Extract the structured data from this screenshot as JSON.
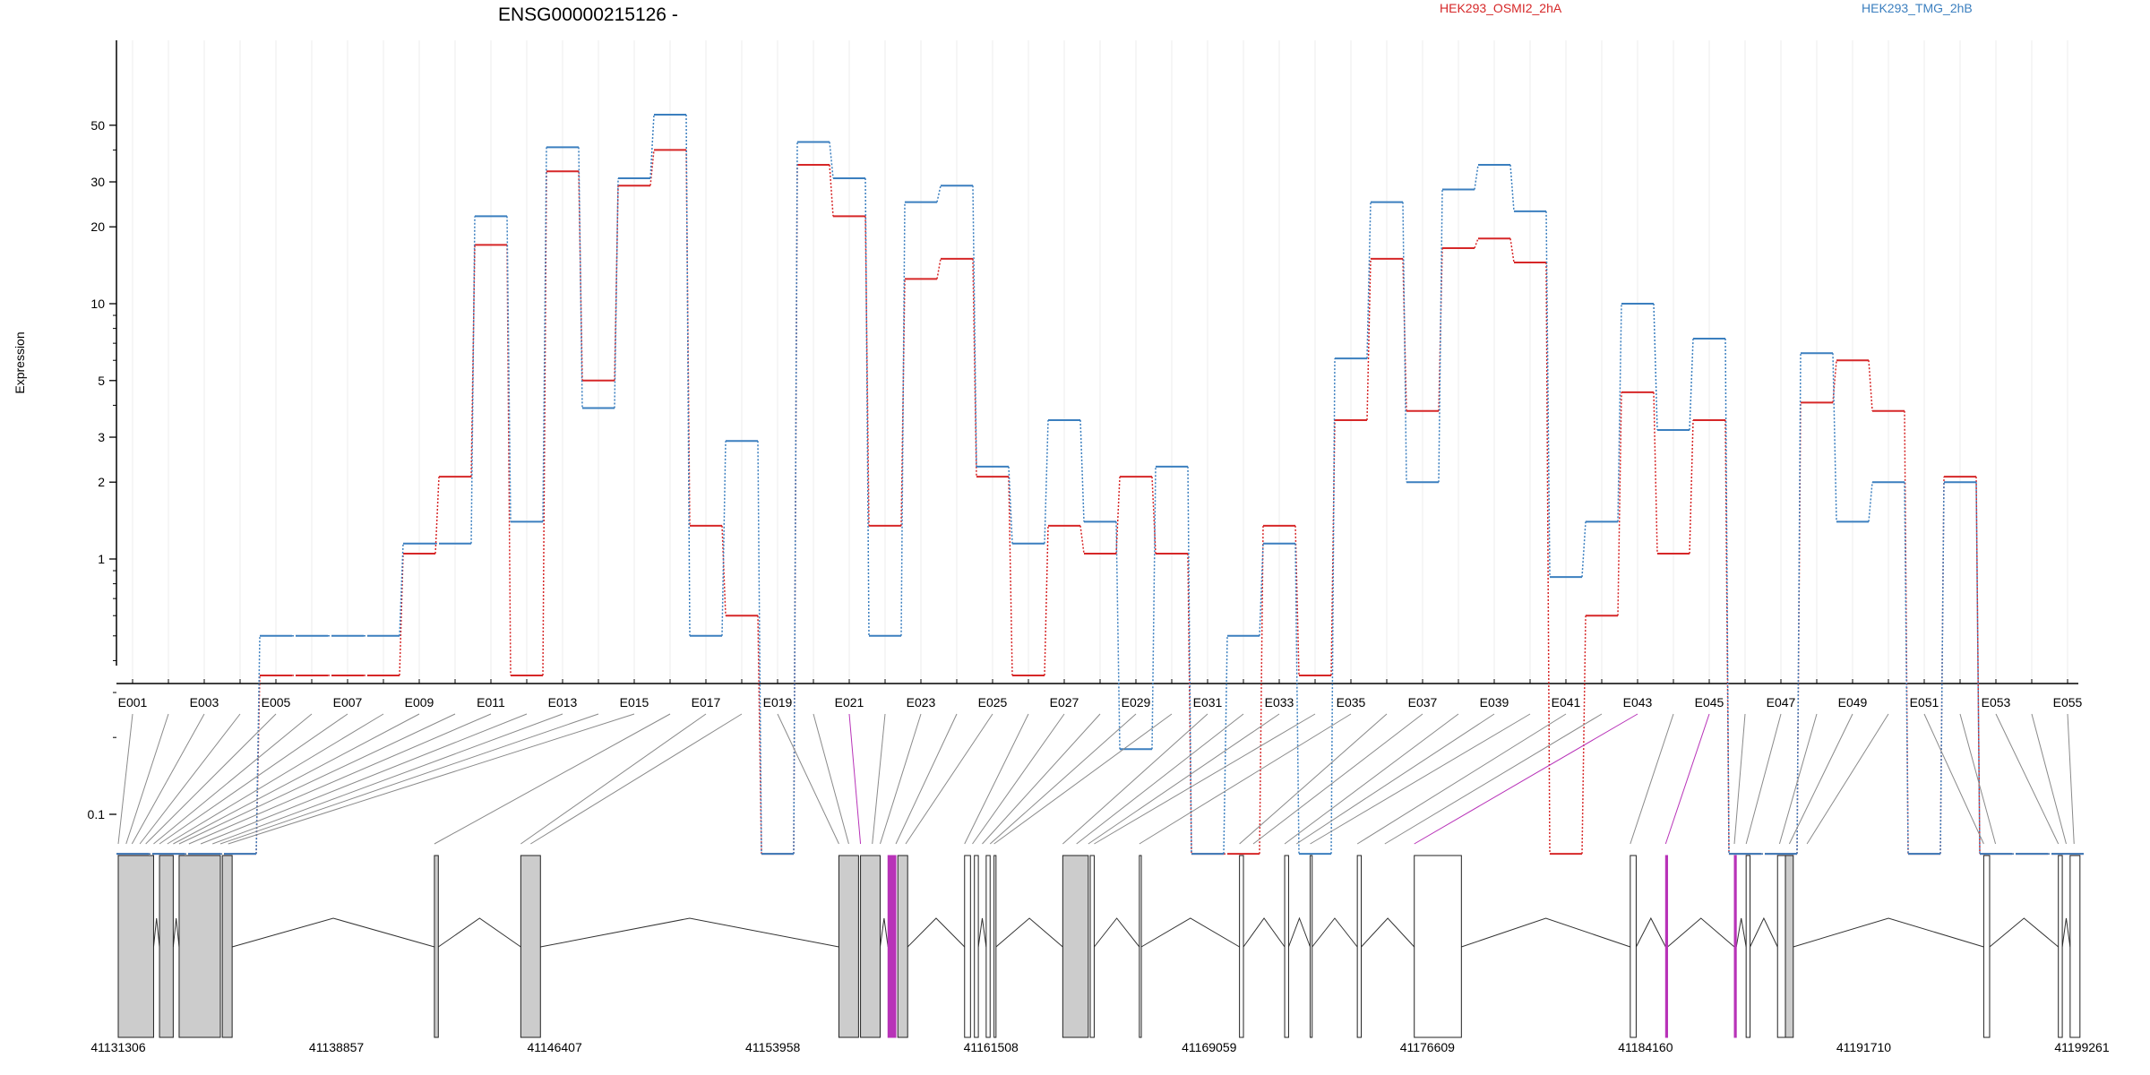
{
  "chart_data": {
    "type": "line",
    "title": "ENSG00000215126 -",
    "ylabel": "Expression",
    "yscale": "log (pseudo)",
    "yticks": [
      {
        "value": 0.1,
        "label": "0.1"
      },
      {
        "value": 1,
        "label": "1"
      },
      {
        "value": 2,
        "label": "2"
      },
      {
        "value": 3,
        "label": "3"
      },
      {
        "value": 5,
        "label": "5"
      },
      {
        "value": 10,
        "label": "10"
      },
      {
        "value": 20,
        "label": "20"
      },
      {
        "value": 30,
        "label": "30"
      },
      {
        "value": 50,
        "label": "50"
      }
    ],
    "grid": true,
    "legend": "top-right",
    "categories": [
      "E001",
      "E002",
      "E003",
      "E004",
      "E005",
      "E006",
      "E007",
      "E008",
      "E009",
      "E010",
      "E011",
      "E012",
      "E013",
      "E014",
      "E015",
      "E016",
      "E017",
      "E018",
      "E019",
      "E020",
      "E021",
      "E022",
      "E023",
      "E024",
      "E025",
      "E026",
      "E027",
      "E028",
      "E029",
      "E030",
      "E031",
      "E032",
      "E033",
      "E034",
      "E035",
      "E036",
      "E037",
      "E038",
      "E039",
      "E040",
      "E041",
      "E042",
      "E043",
      "E044",
      "E045",
      "E046",
      "E047",
      "E048",
      "E049",
      "E050",
      "E051",
      "E052",
      "E053",
      "E054",
      "E055"
    ],
    "xtick_labels": [
      "E001",
      "E003",
      "E005",
      "E007",
      "E009",
      "E011",
      "E013",
      "E015",
      "E017",
      "E019",
      "E021",
      "E023",
      "E025",
      "E027",
      "E029",
      "E031",
      "E033",
      "E035",
      "E037",
      "E039",
      "E041",
      "E043",
      "E045",
      "E047",
      "E049",
      "E051",
      "E053",
      "E055"
    ],
    "series": [
      {
        "name": "HEK293_OSMI2_2hA",
        "color": "#d62728",
        "values": [
          0.07,
          0.07,
          0.07,
          0.07,
          0.35,
          0.35,
          0.35,
          0.35,
          1.05,
          2.1,
          17,
          0.35,
          33,
          5,
          29,
          40,
          1.35,
          0.6,
          0.07,
          35,
          22,
          1.35,
          12.5,
          15,
          2.1,
          0.35,
          1.35,
          1.05,
          2.1,
          1.05,
          0.07,
          0.07,
          1.35,
          0.35,
          3.5,
          15,
          3.8,
          16.5,
          18,
          14.5,
          0.07,
          0.6,
          4.5,
          1.05,
          3.5,
          0.07,
          0.07,
          4.1,
          6,
          3.8,
          0.07,
          2.1,
          0.07,
          0.07,
          0.07
        ]
      },
      {
        "name": "HEK293_TMG_2hB",
        "color": "#3b7fbf",
        "values": [
          0.07,
          0.07,
          0.07,
          0.07,
          0.5,
          0.5,
          0.5,
          0.5,
          1.15,
          1.15,
          22,
          1.4,
          41,
          3.9,
          31,
          55,
          0.5,
          2.9,
          0.07,
          43,
          31,
          0.5,
          25,
          29,
          2.3,
          1.15,
          3.5,
          1.4,
          0.18,
          2.3,
          0.07,
          0.5,
          1.15,
          0.07,
          6.1,
          25,
          2.0,
          28,
          35,
          23,
          0.85,
          1.4,
          10,
          3.2,
          7.3,
          0.07,
          0.07,
          6.4,
          1.4,
          2.0,
          0.07,
          2.0,
          0.07,
          0.07,
          0.07
        ]
      }
    ],
    "gene_model": {
      "coordinate_labels": [
        "41131306",
        "41138857",
        "41146407",
        "41153958",
        "41161508",
        "41169059",
        "41176609",
        "41184160",
        "41191710",
        "41199261"
      ],
      "highlight_color": "#b833b8",
      "highlighted_exons": [
        "E021",
        "E043",
        "E045"
      ]
    }
  }
}
